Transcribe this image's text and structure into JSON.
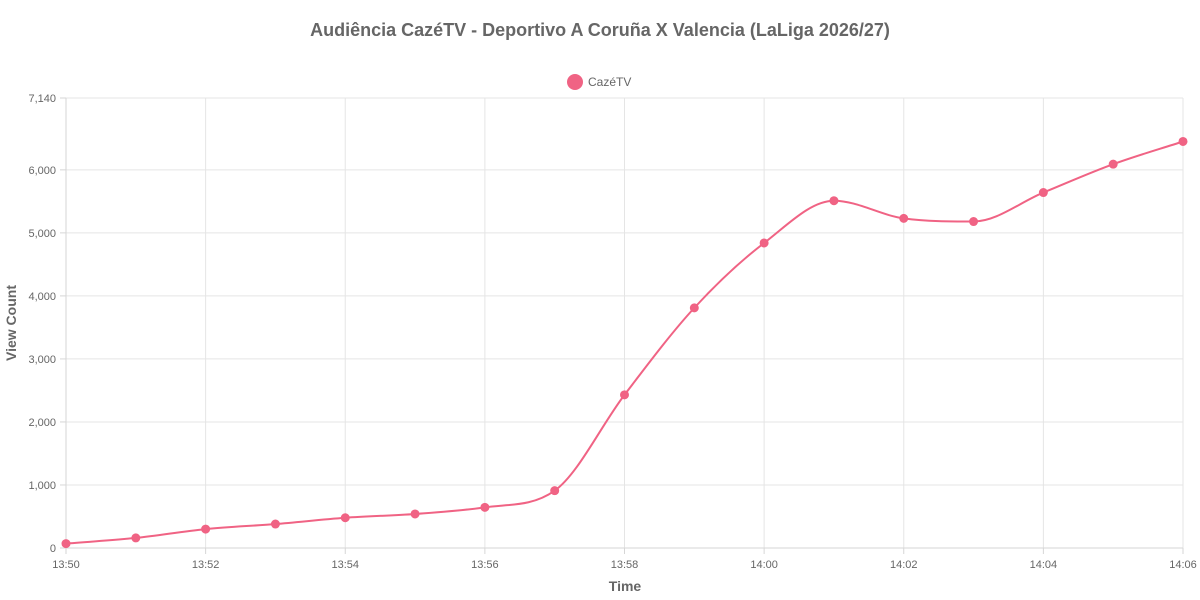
{
  "chart_data": {
    "type": "line",
    "title": "Audiência CazéTV - Deportivo A Coruña X Valencia (LaLiga 2026/27)",
    "xlabel": "Time",
    "ylabel": "View Count",
    "x": [
      "13:50",
      "13:51",
      "13:52",
      "13:53",
      "13:54",
      "13:55",
      "13:56",
      "13:57",
      "13:58",
      "13:59",
      "14:00",
      "14:01",
      "14:02",
      "14:03",
      "14:04",
      "14:05",
      "14:06"
    ],
    "x_tick_labels": [
      "13:50",
      "13:52",
      "13:54",
      "13:56",
      "13:58",
      "14:00",
      "14:02",
      "14:04",
      "14:06"
    ],
    "y_tick_labels": [
      "0",
      "1,000",
      "2,000",
      "3,000",
      "4,000",
      "5,000",
      "6,000",
      "7,140"
    ],
    "ylim": [
      0,
      7140
    ],
    "grid": true,
    "legend_position": "top-center",
    "series": [
      {
        "name": "CazéTV",
        "color": "#f06384",
        "values": [
          70,
          160,
          300,
          380,
          480,
          540,
          645,
          910,
          2430,
          3810,
          4840,
          5510,
          5230,
          5180,
          5640,
          6090,
          6450
        ]
      }
    ]
  }
}
